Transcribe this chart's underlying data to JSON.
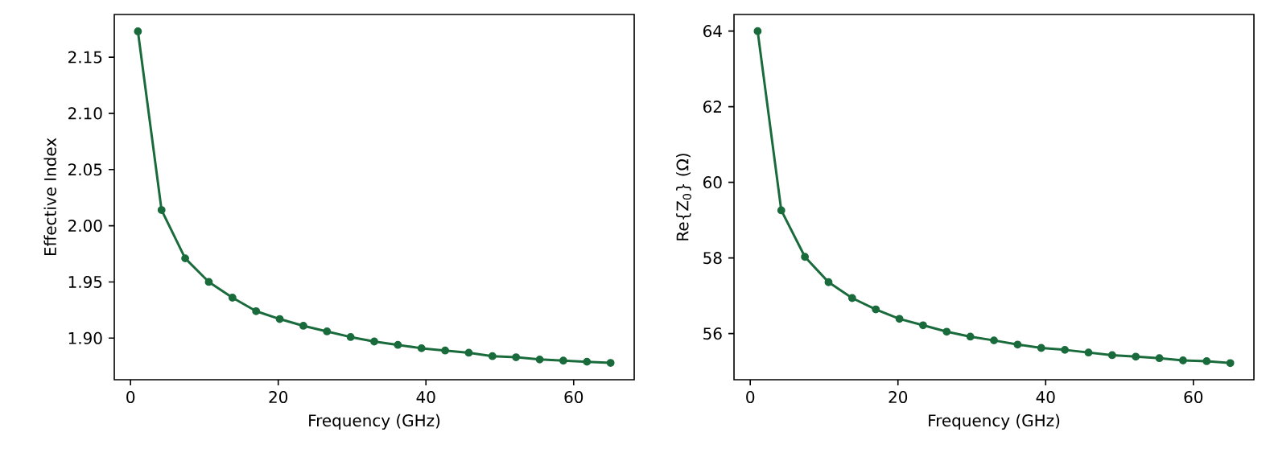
{
  "chart_data": [
    {
      "type": "line",
      "xlabel": "Frequency (GHz)",
      "ylabel": "Effective Index",
      "marker": "circle",
      "line_style": "solid",
      "grid": false,
      "x": [
        1,
        4.2,
        7.4,
        10.6,
        13.8,
        17,
        20.2,
        23.4,
        26.6,
        29.8,
        33,
        36.2,
        39.4,
        42.6,
        45.8,
        49,
        52.2,
        55.4,
        58.6,
        61.8,
        65
      ],
      "series": [
        {
          "color": "#1a6b3c",
          "values": [
            2.173,
            2.014,
            1.971,
            1.95,
            1.936,
            1.924,
            1.917,
            1.911,
            1.906,
            1.901,
            1.897,
            1.894,
            1.891,
            1.889,
            1.887,
            1.884,
            1.883,
            1.881,
            1.88,
            1.879,
            1.878
          ]
        }
      ],
      "xlim": [
        -2.2,
        68.2
      ],
      "ylim": [
        1.863,
        2.188
      ],
      "xticks": [
        0,
        20,
        40,
        60
      ],
      "yticks": [
        {
          "value": 1.9,
          "label": "1.90"
        },
        1.95,
        {
          "value": 2.0,
          "label": "2.00"
        },
        2.05,
        {
          "value": 2.1,
          "label": "2.10"
        },
        2.15
      ]
    },
    {
      "type": "line",
      "xlabel": "Frequency (GHz)",
      "ylabel": "Re{Z$_{0}$} (Ω)",
      "marker": "circle",
      "line_style": "solid",
      "grid": false,
      "x": [
        1,
        4.2,
        7.4,
        10.6,
        13.8,
        17,
        20.2,
        23.4,
        26.6,
        29.8,
        33,
        36.2,
        39.4,
        42.6,
        45.8,
        49,
        52.2,
        55.4,
        58.6,
        61.8,
        65
      ],
      "series": [
        {
          "color": "#1a6b3c",
          "values": [
            64.0,
            59.26,
            58.03,
            57.36,
            56.94,
            56.64,
            56.39,
            56.22,
            56.05,
            55.92,
            55.82,
            55.71,
            55.62,
            55.57,
            55.5,
            55.43,
            55.39,
            55.35,
            55.29,
            55.27,
            55.22
          ]
        }
      ],
      "xlim": [
        -2.2,
        68.2
      ],
      "ylim": [
        54.78,
        64.44
      ],
      "xticks": [
        0,
        20,
        40,
        60
      ],
      "yticks": [
        56,
        58,
        60,
        62,
        64
      ]
    }
  ]
}
